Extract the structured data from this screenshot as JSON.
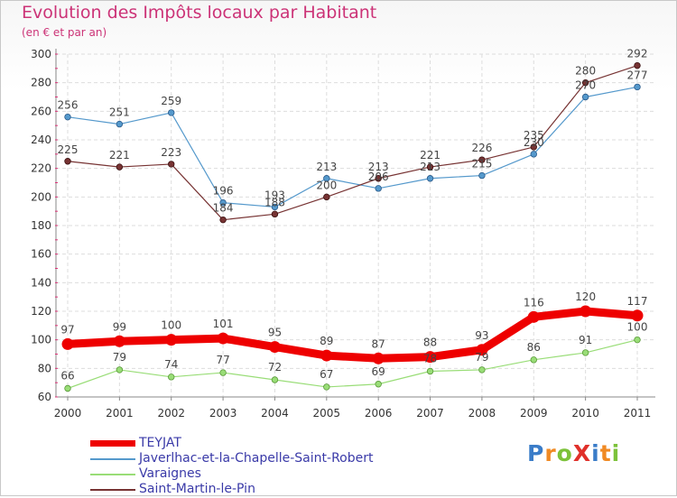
{
  "title": "Evolution des Impôts locaux par Habitant",
  "subtitle": "(en € et par an)",
  "logo": {
    "text": "ProXiti",
    "colors": [
      "#3a7cc8",
      "#f08a24",
      "#7cc23a",
      "#e0302a",
      "#3a7cc8",
      "#f08a24",
      "#7cc23a"
    ]
  },
  "chart_data": {
    "type": "line",
    "title": "Evolution des Impôts locaux par Habitant",
    "subtitle": "(en € et par an)",
    "xlabel": "",
    "ylabel": "",
    "ylim": [
      60,
      300
    ],
    "ymajor": [
      60,
      80,
      100,
      120,
      140,
      160,
      180,
      200,
      220,
      240,
      260,
      280,
      300
    ],
    "x": [
      "2000",
      "2001",
      "2002",
      "2003",
      "2004",
      "2005",
      "2006",
      "2007",
      "2008",
      "2009",
      "2010",
      "2011"
    ],
    "grid": true,
    "series": [
      {
        "name": "TEYJAT",
        "color": "#ee0000",
        "values": [
          97,
          99,
          100,
          101,
          95,
          89,
          87,
          88,
          93,
          116,
          120,
          117
        ],
        "labels": [
          "97",
          "99",
          "100",
          "101",
          "95",
          "89",
          "87",
          "88",
          "93",
          "116",
          "120",
          "117"
        ]
      },
      {
        "name": "Javerlhac-et-la-Chapelle-Saint-Robert",
        "color": "#5599cc",
        "values": [
          256,
          251,
          259,
          196,
          193,
          213,
          206,
          213,
          215,
          230,
          270,
          277
        ],
        "labels": [
          "256",
          "251",
          "259",
          "196",
          "193",
          "213",
          "206",
          "213",
          "215",
          "230",
          "270",
          "277"
        ]
      },
      {
        "name": "Varaignes",
        "color": "#99dd77",
        "values": [
          66,
          79,
          74,
          77,
          72,
          67,
          69,
          78,
          79,
          86,
          91,
          100
        ],
        "labels": [
          "66",
          "79",
          "74",
          "77",
          "72",
          "67",
          "69",
          "78",
          "79",
          "86",
          "91",
          "100"
        ]
      },
      {
        "name": "Saint-Martin-le-Pin",
        "color": "#773333",
        "values": [
          225,
          221,
          223,
          184,
          188,
          200,
          213,
          221,
          226,
          235,
          280,
          292
        ],
        "labels": [
          "225",
          "221",
          "223",
          "184",
          "188",
          "200",
          "213",
          "221",
          "226",
          "235",
          "280",
          "292"
        ]
      }
    ]
  }
}
